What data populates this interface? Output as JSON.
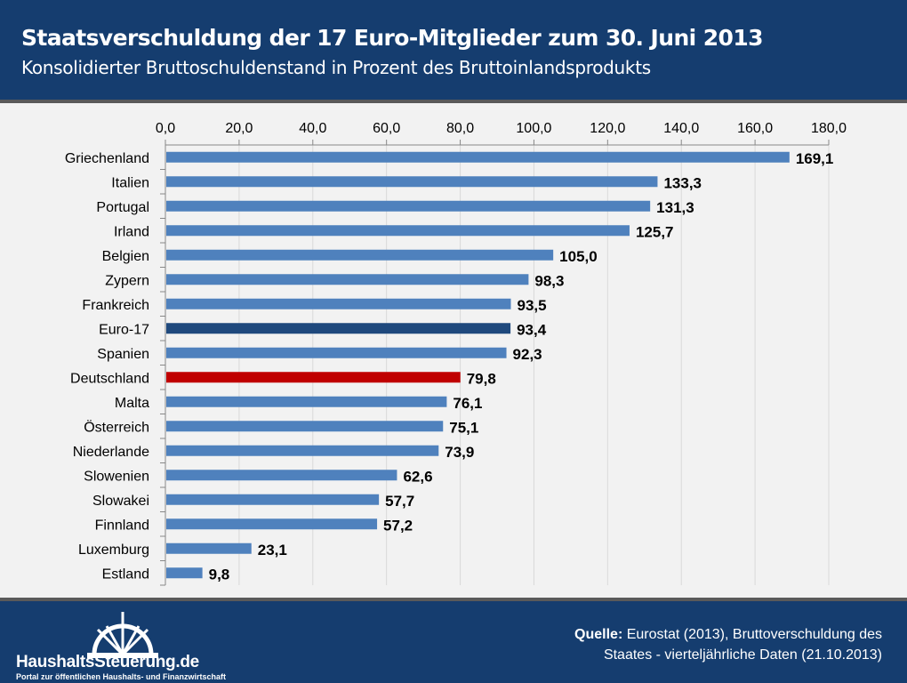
{
  "header": {
    "title": "Staatsverschuldung der 17 Euro-Mitglieder zum 30. Juni 2013",
    "subtitle": "Konsolidierter Bruttoschuldenstand in Prozent des Bruttoinlandsprodukts"
  },
  "footer": {
    "source_label": "Quelle:",
    "source_line1": " Eurostat (2013), Bruttoverschuldung des",
    "source_line2": "Staates - vierteljährliche Daten (21.10.2013)",
    "logo_text": "HaushaltsSteuerung.de",
    "logo_tagline": "Portal zur öffentlichen Haushalts- und Finanzwirtschaft"
  },
  "chart_data": {
    "type": "bar",
    "orientation": "horizontal",
    "title": "Staatsverschuldung der 17 Euro-Mitglieder zum 30. Juni 2013",
    "xlim": [
      0,
      180
    ],
    "xticks": [
      "0,0",
      "20,0",
      "40,0",
      "60,0",
      "80,0",
      "100,0",
      "120,0",
      "140,0",
      "160,0",
      "180,0"
    ],
    "xaxis_position": "top",
    "grid": true,
    "categories": [
      "Griechenland",
      "Italien",
      "Portugal",
      "Irland",
      "Belgien",
      "Zypern",
      "Frankreich",
      "Euro-17",
      "Spanien",
      "Deutschland",
      "Malta",
      "Österreich",
      "Niederlande",
      "Slowenien",
      "Slowakei",
      "Finnland",
      "Luxemburg",
      "Estland"
    ],
    "values": [
      169.1,
      133.3,
      131.3,
      125.7,
      105.0,
      98.3,
      93.5,
      93.4,
      92.3,
      79.8,
      76.1,
      75.1,
      73.9,
      62.6,
      57.7,
      57.2,
      23.1,
      9.8
    ],
    "labels": [
      "169,1",
      "133,3",
      "131,3",
      "125,7",
      "105,0",
      "98,3",
      "93,5",
      "93,4",
      "92,3",
      "79,8",
      "76,1",
      "75,1",
      "73,9",
      "62,6",
      "57,7",
      "57,2",
      "23,1",
      "9,8"
    ],
    "colors": {
      "default": "#4f81bd",
      "Euro-17": "#1f497d",
      "Deutschland": "#c00000"
    }
  }
}
